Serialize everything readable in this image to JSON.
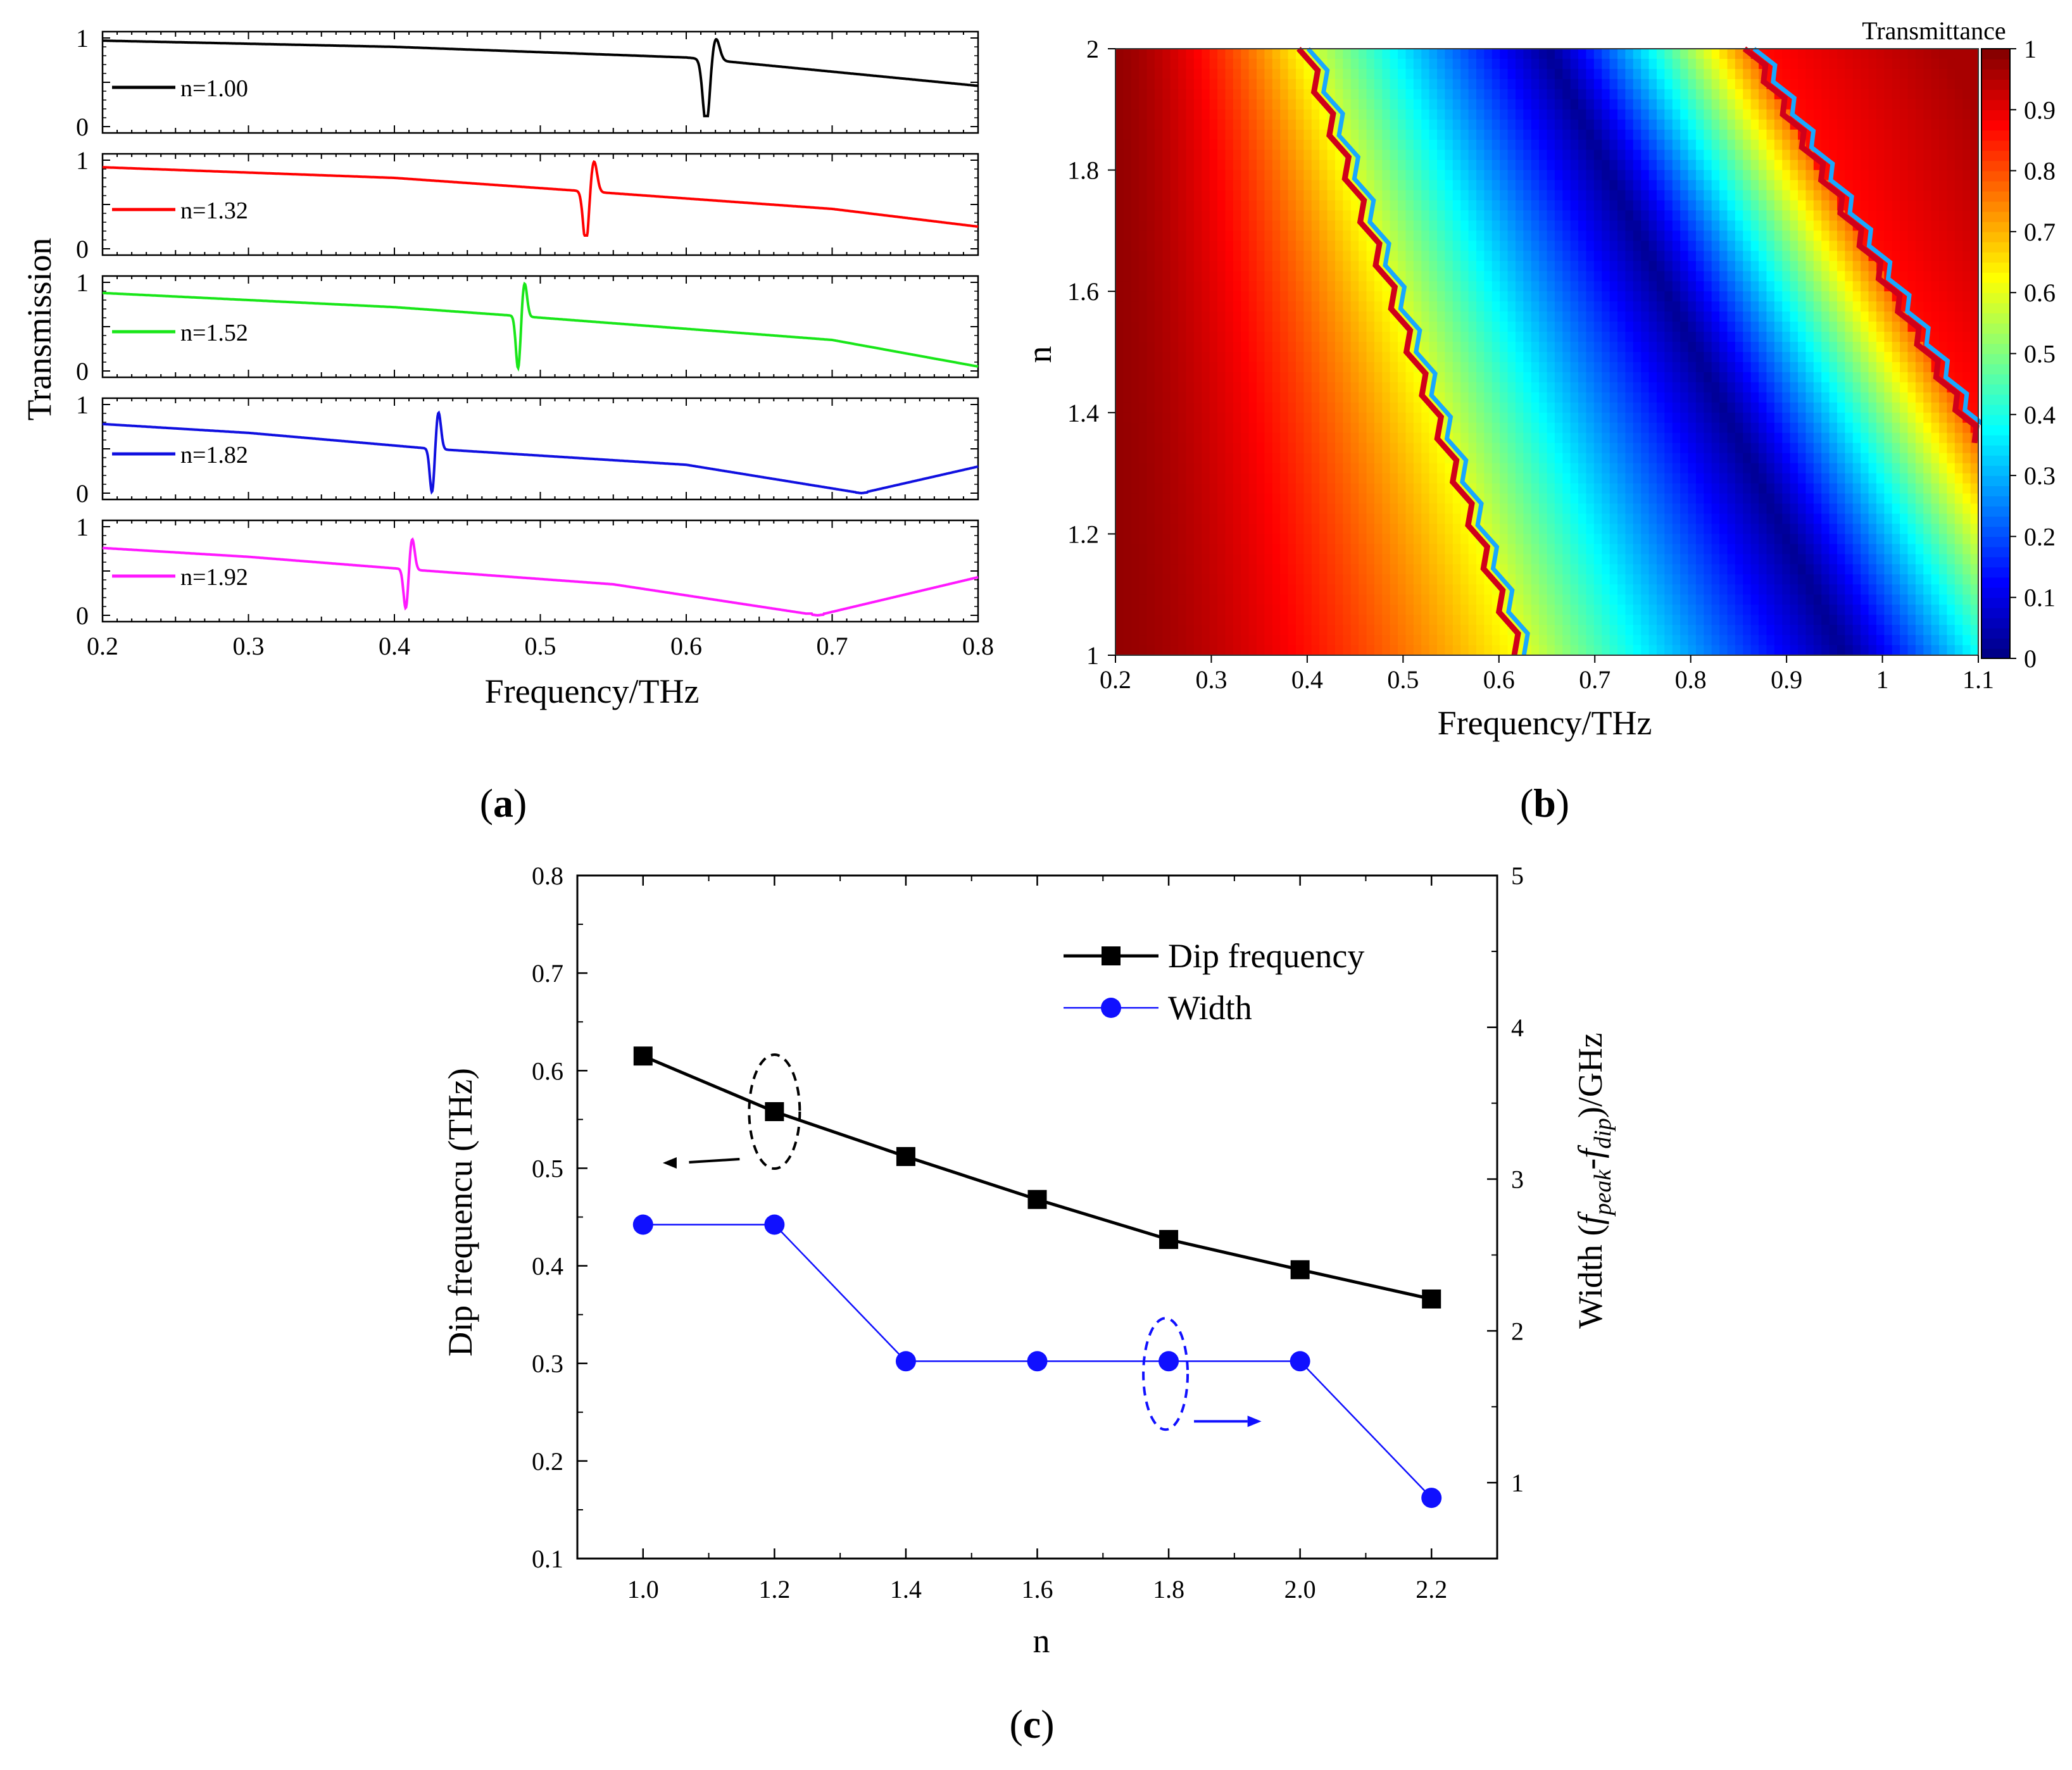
{
  "panel_labels": {
    "a": "a",
    "b": "b",
    "c": "c"
  },
  "colors": {
    "black": "#000000",
    "red": "#ff0000",
    "green": "#19e619",
    "blue": "#1010e0",
    "magenta": "#ff19ff",
    "series_black": "#000000",
    "series_blue": "#1010ff"
  },
  "chart_data": [
    {
      "id": "a",
      "type": "line",
      "xlabel": "Frequency/THz",
      "ylabel": "Transmission",
      "xlim": [
        0.2,
        0.8
      ],
      "xticks": [
        "0.2",
        "0.3",
        "0.4",
        "0.5",
        "0.6",
        "0.7",
        "0.8"
      ],
      "ylim": [
        0,
        1
      ],
      "yticks": [
        "0",
        "1"
      ],
      "stacked_subplots": 5,
      "series": [
        {
          "name": "n=1.00",
          "color": "#000000",
          "baseline": [
            [
              0.2,
              0.97
            ],
            [
              0.4,
              0.9
            ],
            [
              0.6,
              0.78
            ],
            [
              0.7,
              0.62
            ],
            [
              0.8,
              0.46
            ]
          ],
          "resonance": {
            "f0": 0.617,
            "width": 0.006,
            "depth": 0.75,
            "peak": 0.25,
            "min": 0.12,
            "max": 1.0
          },
          "dip_v": null
        },
        {
          "name": "n=1.32",
          "color": "#ff0000",
          "baseline": [
            [
              0.2,
              0.92
            ],
            [
              0.4,
              0.8
            ],
            [
              0.53,
              0.65
            ],
            [
              0.7,
              0.45
            ],
            [
              0.8,
              0.25
            ]
          ],
          "resonance": {
            "f0": 0.534,
            "width": 0.005,
            "depth": 0.6,
            "peak": 0.35,
            "min": 0.15,
            "max": 1.0
          },
          "dip_v": null
        },
        {
          "name": "n=1.52",
          "color": "#19e619",
          "baseline": [
            [
              0.2,
              0.88
            ],
            [
              0.4,
              0.72
            ],
            [
              0.485,
              0.62
            ],
            [
              0.7,
              0.35
            ],
            [
              0.8,
              0.05
            ]
          ],
          "resonance": {
            "f0": 0.487,
            "width": 0.004,
            "depth": 0.6,
            "peak": 0.38,
            "min": 0.02,
            "max": 1.0
          },
          "dip_v": null
        },
        {
          "name": "n=1.82",
          "color": "#1010e0",
          "baseline": [
            [
              0.2,
              0.78
            ],
            [
              0.3,
              0.68
            ],
            [
              0.426,
              0.5
            ],
            [
              0.6,
              0.32
            ],
            [
              0.72,
              0.0
            ],
            [
              0.8,
              0.3
            ]
          ],
          "resonance": {
            "f0": 0.428,
            "width": 0.004,
            "depth": 0.5,
            "peak": 0.42,
            "min": 0.0,
            "max": 0.92
          },
          "dip_v": 0.72
        },
        {
          "name": "n=1.92",
          "color": "#ff19ff",
          "baseline": [
            [
              0.2,
              0.76
            ],
            [
              0.3,
              0.66
            ],
            [
              0.408,
              0.52
            ],
            [
              0.55,
              0.35
            ],
            [
              0.69,
              0.0
            ],
            [
              0.8,
              0.43
            ]
          ],
          "resonance": {
            "f0": 0.41,
            "width": 0.004,
            "depth": 0.45,
            "peak": 0.35,
            "min": 0.02,
            "max": 0.88
          },
          "dip_v": 0.69
        }
      ]
    },
    {
      "id": "b",
      "type": "heatmap",
      "title": "Transmittance",
      "xlabel": "Frequency/THz",
      "ylabel": "n",
      "xlim": [
        0.2,
        1.1
      ],
      "xticks": [
        "0.2",
        "0.3",
        "0.4",
        "0.5",
        "0.6",
        "0.7",
        "0.8",
        "0.9",
        "1",
        "1.1"
      ],
      "ylim": [
        1,
        2
      ],
      "yticks": [
        "1",
        "1.2",
        "1.4",
        "1.6",
        "1.8",
        "2"
      ],
      "colorbar": {
        "range": [
          0,
          1
        ],
        "ticks": [
          "0",
          "0.1",
          "0.2",
          "0.3",
          "0.4",
          "0.5",
          "0.6",
          "0.7",
          "0.8",
          "0.9",
          "1"
        ]
      },
      "features": {
        "fano_line_1": [
          [
            0.62,
            1.0
          ],
          [
            0.395,
            2.0
          ]
        ],
        "fano_line_2": [
          [
            1.1,
            1.35
          ],
          [
            0.86,
            2.0
          ]
        ],
        "min_band": [
          [
            0.96,
            1.0
          ],
          [
            0.65,
            2.0
          ]
        ]
      }
    },
    {
      "id": "c",
      "type": "line",
      "xlabel": "n",
      "ylabel_left": "Dip frequencu (THz)",
      "ylabel_right_parts": [
        "Width (",
        "f",
        "peak",
        "-",
        "f",
        "dip",
        ")/GHz"
      ],
      "xlim": [
        0.9,
        2.3
      ],
      "xticks": [
        "1.0",
        "1.2",
        "1.4",
        "1.6",
        "1.8",
        "2.0",
        "2.2"
      ],
      "ylim_left": [
        0.1,
        0.8
      ],
      "yticks_left": [
        "0.1",
        "0.2",
        "0.3",
        "0.4",
        "0.5",
        "0.6",
        "0.7",
        "0.8"
      ],
      "ylim_right": [
        0.5,
        5
      ],
      "yticks_right": [
        "1",
        "2",
        "3",
        "4",
        "5"
      ],
      "legend_position": "top-right",
      "series": [
        {
          "name": "Dip frequency",
          "axis": "left",
          "marker": "square",
          "color": "#000000",
          "x": [
            1.0,
            1.2,
            1.4,
            1.6,
            1.8,
            2.0,
            2.2
          ],
          "y": [
            0.615,
            0.558,
            0.512,
            0.468,
            0.427,
            0.396,
            0.366
          ]
        },
        {
          "name": "Width",
          "axis": "right",
          "marker": "circle",
          "color": "#1010ff",
          "x": [
            1.0,
            1.2,
            1.4,
            1.6,
            1.8,
            2.0,
            2.2
          ],
          "y": [
            2.7,
            2.7,
            1.8,
            1.8,
            1.8,
            1.8,
            0.9
          ]
        }
      ]
    }
  ]
}
